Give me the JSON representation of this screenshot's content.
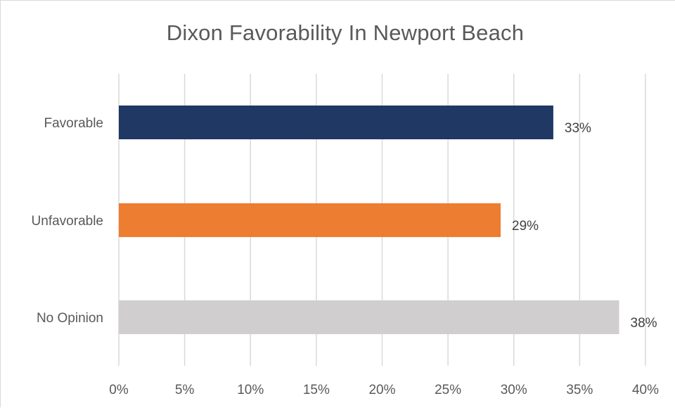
{
  "chart_data": {
    "type": "bar",
    "orientation": "horizontal",
    "title": "Dixon Favorability In Newport Beach",
    "categories": [
      "Favorable",
      "Unfavorable",
      "No Opinion"
    ],
    "values": [
      33,
      29,
      38
    ],
    "value_labels": [
      "33%",
      "29%",
      "38%"
    ],
    "colors": [
      "#1f3864",
      "#ed7d31",
      "#d0cece"
    ],
    "x_ticks": [
      "0%",
      "5%",
      "10%",
      "15%",
      "20%",
      "25%",
      "30%",
      "35%",
      "40%"
    ],
    "xlim": [
      0,
      40
    ],
    "grid": "vertical",
    "legend": "none"
  }
}
